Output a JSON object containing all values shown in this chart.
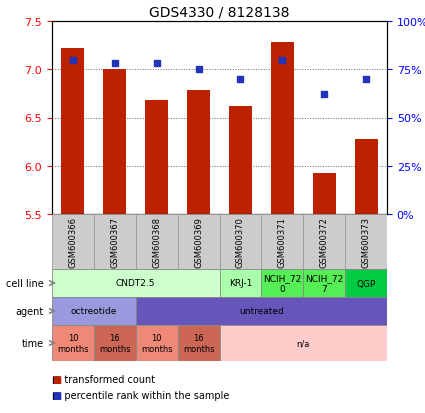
{
  "title": "GDS4330 / 8128138",
  "samples": [
    "GSM600366",
    "GSM600367",
    "GSM600368",
    "GSM600369",
    "GSM600370",
    "GSM600371",
    "GSM600372",
    "GSM600373"
  ],
  "bar_values": [
    7.22,
    7.0,
    6.68,
    6.78,
    6.62,
    7.28,
    5.92,
    6.28
  ],
  "percentile_values": [
    80,
    78,
    78,
    75,
    70,
    80,
    62,
    70
  ],
  "ylim": [
    5.5,
    7.5
  ],
  "y2lim": [
    0,
    100
  ],
  "yticks": [
    5.5,
    6.0,
    6.5,
    7.0,
    7.5
  ],
  "y2ticks": [
    0,
    25,
    50,
    75,
    100
  ],
  "y2ticklabels": [
    "0%",
    "25%",
    "50%",
    "75%",
    "100%"
  ],
  "bar_color": "#bb2200",
  "dot_color": "#2233bb",
  "grid_color": "#666666",
  "cell_line_data": [
    {
      "label": "CNDT2.5",
      "start": 0,
      "end": 4,
      "color": "#ccffcc"
    },
    {
      "label": "KRJ-1",
      "start": 4,
      "end": 5,
      "color": "#aaffaa"
    },
    {
      "label": "NCIH_72\n0",
      "start": 5,
      "end": 6,
      "color": "#55ee55"
    },
    {
      "label": "NCIH_72\n7",
      "start": 6,
      "end": 7,
      "color": "#55ee55"
    },
    {
      "label": "QGP",
      "start": 7,
      "end": 8,
      "color": "#00cc44"
    }
  ],
  "agent_data": [
    {
      "label": "octreotide",
      "start": 0,
      "end": 2,
      "color": "#9999dd"
    },
    {
      "label": "untreated",
      "start": 2,
      "end": 8,
      "color": "#6655bb"
    }
  ],
  "time_data": [
    {
      "label": "10\nmonths",
      "start": 0,
      "end": 1,
      "color": "#ee8877"
    },
    {
      "label": "16\nmonths",
      "start": 1,
      "end": 2,
      "color": "#cc6655"
    },
    {
      "label": "10\nmonths",
      "start": 2,
      "end": 3,
      "color": "#ee8877"
    },
    {
      "label": "16\nmonths",
      "start": 3,
      "end": 4,
      "color": "#cc6655"
    },
    {
      "label": "n/a",
      "start": 4,
      "end": 8,
      "color": "#ffcccc"
    }
  ],
  "row_labels": [
    "cell line",
    "agent",
    "time"
  ],
  "legend_bar_label": "transformed count",
  "legend_dot_label": "percentile rank within the sample",
  "sample_box_color": "#cccccc",
  "sample_box_edge": "#999999"
}
